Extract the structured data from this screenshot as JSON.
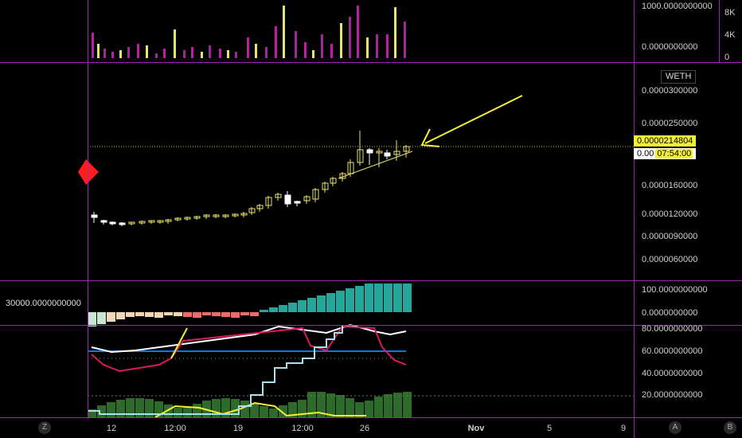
{
  "volume_axis": {
    "right_labels": [
      "1000.0000000000",
      "0.0000000000"
    ],
    "far_right_labels": [
      "8K",
      "4K",
      "0"
    ]
  },
  "price_axis": {
    "symbol_badge": "WETH",
    "labels": [
      "0.0000300000",
      "0.0000250000",
      "0.0000160000",
      "0.0000120000",
      "0.0000090000",
      "0.0000060000"
    ],
    "current_price": "0.0000214804",
    "countdown_prefix": "0.00",
    "countdown": "07:54:00"
  },
  "histogram_axis": {
    "left_label": "30000.0000000000",
    "labels": [
      "100.0000000000",
      "0.0000000000"
    ]
  },
  "oscillator_axis": {
    "labels": [
      "80.0000000000",
      "60.0000000000",
      "40.0000000000",
      "20.0000000000"
    ]
  },
  "time_axis": {
    "labels": [
      "12",
      "12:00",
      "19",
      "12:00",
      "26",
      "Nov",
      "5",
      "9"
    ]
  },
  "buttons": {
    "z": "Z",
    "a": "A",
    "b": "B"
  },
  "colors": {
    "grid_border": "#9c27b0",
    "candle": "#e8e36a",
    "arrow": "#f5f032",
    "teal": "#26a69a",
    "salmon": "#ef6b6b",
    "green_bars": "#2e6b2a"
  }
}
